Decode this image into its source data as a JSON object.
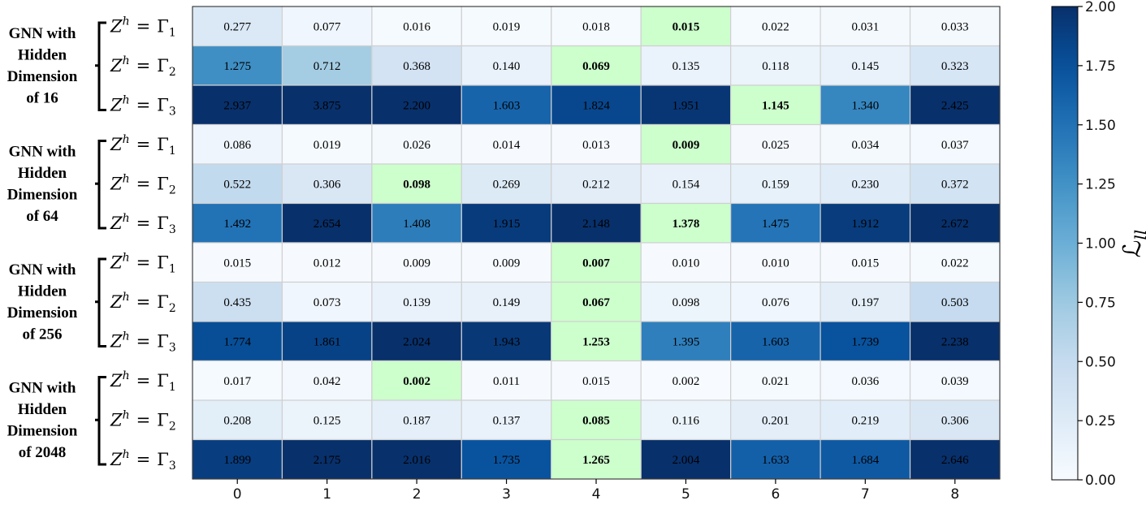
{
  "chart_data": {
    "type": "heatmap",
    "x_categories": [
      "0",
      "1",
      "2",
      "3",
      "4",
      "5",
      "6",
      "7",
      "8"
    ],
    "groups": [
      {
        "label_lines": [
          "GNN with",
          "Hidden",
          "Dimension",
          "of 16"
        ],
        "rows": [
          {
            "label": "Z^h = Γ_1",
            "values": [
              0.277,
              0.077,
              0.016,
              0.019,
              0.018,
              0.015,
              0.022,
              0.031,
              0.033
            ],
            "highlight_index": 5
          },
          {
            "label": "Z^h = Γ_2",
            "values": [
              1.275,
              0.712,
              0.368,
              0.14,
              0.069,
              0.135,
              0.118,
              0.145,
              0.323
            ],
            "highlight_index": 4
          },
          {
            "label": "Z^h = Γ_3",
            "values": [
              2.937,
              3.875,
              2.2,
              1.603,
              1.824,
              1.951,
              1.145,
              1.34,
              2.425
            ],
            "highlight_index": 6
          }
        ]
      },
      {
        "label_lines": [
          "GNN with",
          "Hidden",
          "Dimension",
          "of 64"
        ],
        "rows": [
          {
            "label": "Z^h = Γ_1",
            "values": [
              0.086,
              0.019,
              0.026,
              0.014,
              0.013,
              0.009,
              0.025,
              0.034,
              0.037
            ],
            "highlight_index": 5
          },
          {
            "label": "Z^h = Γ_2",
            "values": [
              0.522,
              0.306,
              0.098,
              0.269,
              0.212,
              0.154,
              0.159,
              0.23,
              0.372
            ],
            "highlight_index": 2
          },
          {
            "label": "Z^h = Γ_3",
            "values": [
              1.492,
              2.654,
              1.408,
              1.915,
              2.148,
              1.378,
              1.475,
              1.912,
              2.672
            ],
            "highlight_index": 5
          }
        ]
      },
      {
        "label_lines": [
          "GNN with",
          "Hidden",
          "Dimension",
          "of 256"
        ],
        "rows": [
          {
            "label": "Z^h = Γ_1",
            "values": [
              0.015,
              0.012,
              0.009,
              0.009,
              0.007,
              0.01,
              0.01,
              0.015,
              0.022
            ],
            "highlight_index": 4
          },
          {
            "label": "Z^h = Γ_2",
            "values": [
              0.435,
              0.073,
              0.139,
              0.149,
              0.067,
              0.098,
              0.076,
              0.197,
              0.503
            ],
            "highlight_index": 4
          },
          {
            "label": "Z^h = Γ_3",
            "values": [
              1.774,
              1.861,
              2.024,
              1.943,
              1.253,
              1.395,
              1.603,
              1.739,
              2.238
            ],
            "highlight_index": 4
          }
        ]
      },
      {
        "label_lines": [
          "GNN with",
          "Hidden",
          "Dimension",
          "of 2048"
        ],
        "rows": [
          {
            "label": "Z^h = Γ_1",
            "values": [
              0.017,
              0.042,
              0.002,
              0.011,
              0.015,
              0.002,
              0.021,
              0.036,
              0.039
            ],
            "highlight_index": 2
          },
          {
            "label": "Z^h = Γ_2",
            "values": [
              0.208,
              0.125,
              0.187,
              0.137,
              0.085,
              0.116,
              0.201,
              0.219,
              0.306
            ],
            "highlight_index": 4
          },
          {
            "label": "Z^h = Γ_3",
            "values": [
              1.899,
              2.175,
              2.016,
              1.735,
              1.265,
              2.004,
              1.633,
              1.684,
              2.646
            ],
            "highlight_index": 4
          }
        ]
      }
    ],
    "colorbar": {
      "label": "ℒ_ll",
      "min": 0.0,
      "max": 2.0,
      "ticks": [
        "0.00",
        "0.25",
        "0.50",
        "0.75",
        "1.00",
        "1.25",
        "1.50",
        "1.75",
        "2.00"
      ],
      "colormap": "Blues"
    },
    "highlight_color": "#ccffcc",
    "grid_line_color": "#d0d0d0"
  }
}
